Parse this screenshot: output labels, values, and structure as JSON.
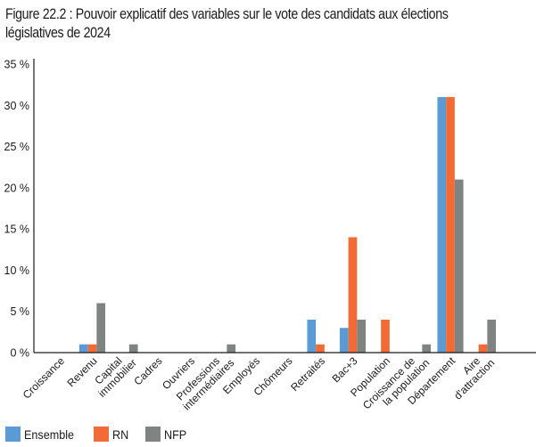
{
  "chart_data": {
    "type": "bar",
    "title": "Figure 22.2 : Pouvoir explicatif des variables sur le vote des candidats aux élections législatives de 2024",
    "xlabel": "",
    "ylabel": "",
    "ylim": [
      0,
      35
    ],
    "yticks": [
      0,
      5,
      10,
      15,
      20,
      25,
      30,
      35
    ],
    "ytick_labels": [
      "0 %",
      "5 %",
      "10 %",
      "15 %",
      "20 %",
      "25 %",
      "30 %",
      "35 %"
    ],
    "grid": false,
    "legend_position": "bottom-left",
    "categories": [
      [
        "Croissance"
      ],
      [
        "Revenu"
      ],
      [
        "Capital",
        "immobilier"
      ],
      [
        "Cadres"
      ],
      [
        "Ouvriers"
      ],
      [
        "Professions",
        "intermédiaires"
      ],
      [
        "Employés"
      ],
      [
        "Chômeurs"
      ],
      [
        "Retraités"
      ],
      [
        "Bac+3"
      ],
      [
        "Population"
      ],
      [
        "Croissance de",
        "la population"
      ],
      [
        "Département"
      ],
      [
        "Aire",
        "d'attraction"
      ]
    ],
    "series": [
      {
        "name": "Ensemble",
        "color": "#5b9bd5",
        "values": [
          0,
          1,
          0,
          0,
          0,
          0,
          0,
          0,
          4,
          3,
          0,
          0,
          31,
          0
        ]
      },
      {
        "name": "RN",
        "color": "#f26a35",
        "values": [
          0,
          1,
          0,
          0,
          0,
          0,
          0,
          0,
          1,
          14,
          4,
          0,
          31,
          1
        ]
      },
      {
        "name": "NFP",
        "color": "#7f8482",
        "values": [
          0,
          6,
          1,
          0,
          0,
          1,
          0,
          0,
          0,
          4,
          0,
          1,
          21,
          4
        ]
      }
    ]
  },
  "title_line1": "Figure 22.2 : Pouvoir explicatif des variables sur le vote des candidats aux élections",
  "title_line2": "législatives de 2024",
  "legend": [
    {
      "label": "Ensemble",
      "color": "#5b9bd5"
    },
    {
      "label": "RN",
      "color": "#f26a35"
    },
    {
      "label": "NFP",
      "color": "#7f8482"
    }
  ]
}
